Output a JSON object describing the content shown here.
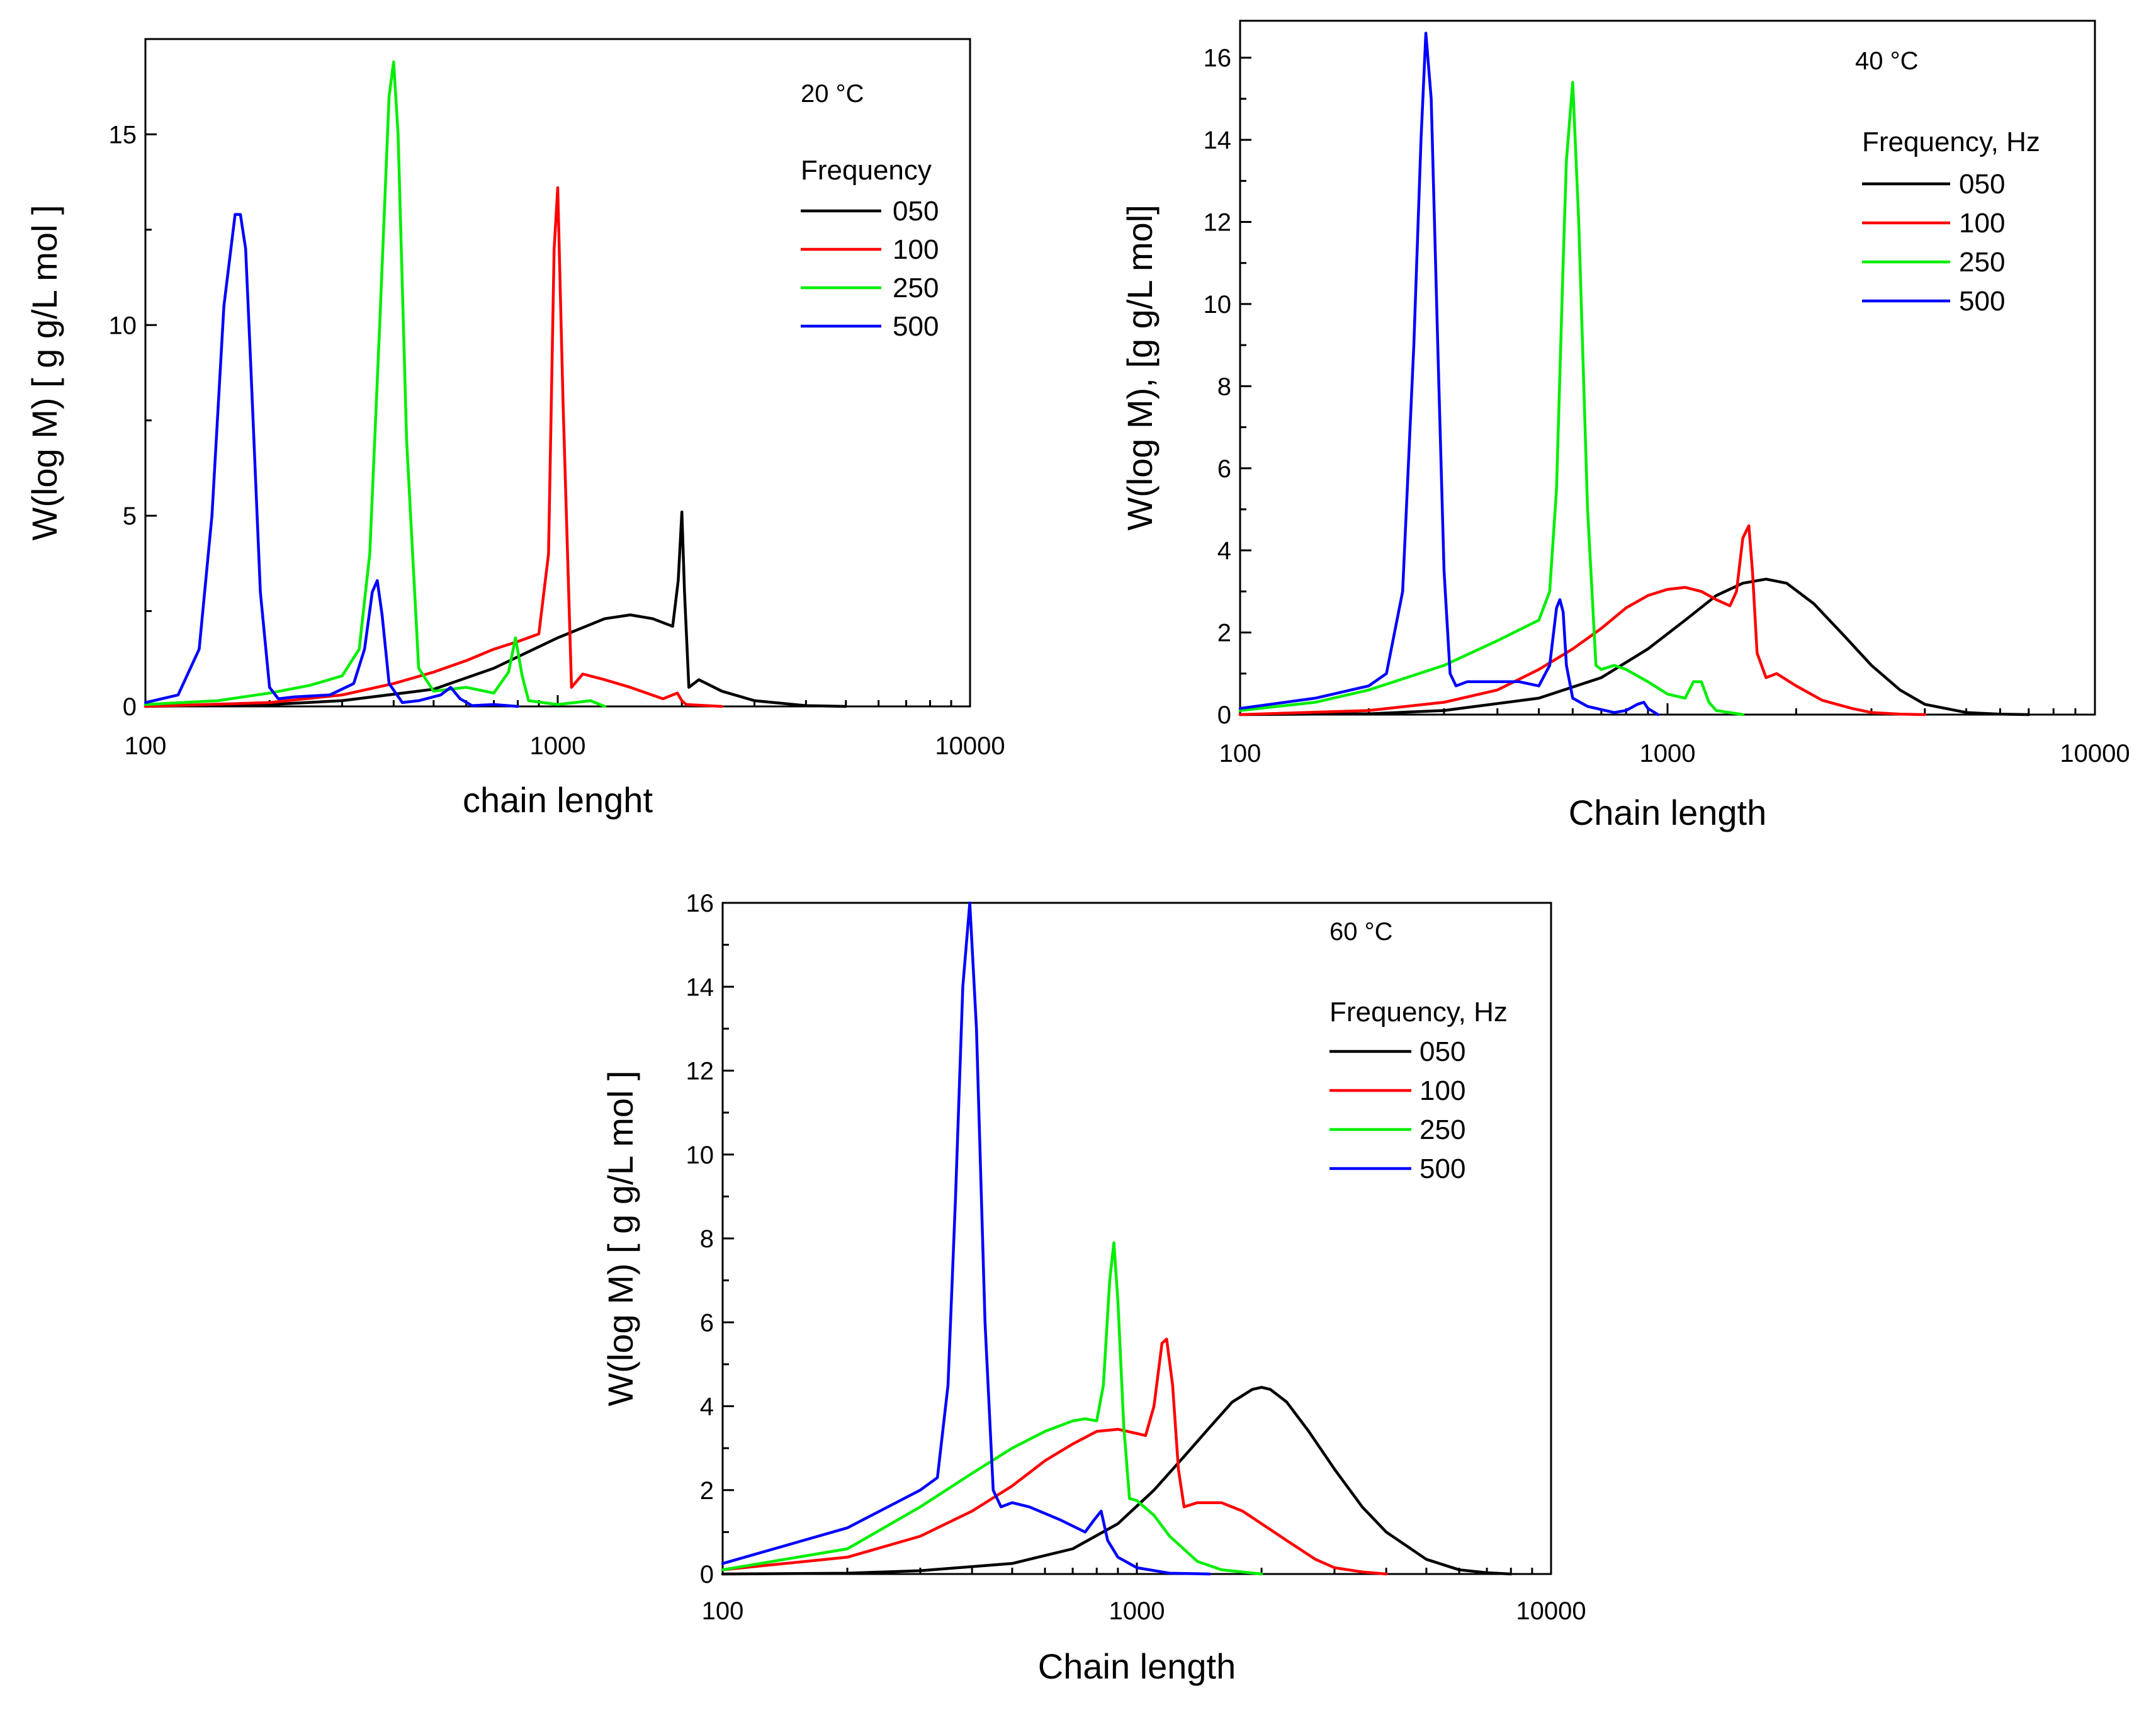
{
  "colors": {
    "050": "#000000",
    "100": "#ff0000",
    "250": "#00ee00",
    "500": "#0000ff"
  },
  "chart_data": [
    {
      "type": "line",
      "annotation": "20 °C",
      "xlabel": "chain lenght",
      "ylabel": "W(log M) [ g g/L mol ]",
      "xscale": "log",
      "xlim": [
        100,
        10000
      ],
      "ylim": [
        0,
        17.5
      ],
      "xticks": [
        100,
        1000,
        10000
      ],
      "xtick_labels": [
        "100",
        "1000",
        "10000"
      ],
      "yticks": [
        0,
        5,
        10,
        15
      ],
      "ytick_labels": [
        "0",
        "5",
        "10",
        "15"
      ],
      "grid": false,
      "legend": {
        "title": "Frequency",
        "placement": "top-right",
        "entries": [
          "050",
          "100",
          "250",
          "500"
        ]
      },
      "series": [
        {
          "name": "050",
          "x": [
            100,
            200,
            300,
            500,
            700,
            1000,
            1300,
            1500,
            1700,
            1900,
            1960,
            2000,
            2030,
            2080,
            2200,
            2500,
            3000,
            4000,
            5000
          ],
          "y": [
            0.0,
            0.05,
            0.15,
            0.45,
            1.0,
            1.8,
            2.3,
            2.4,
            2.3,
            2.1,
            3.3,
            5.1,
            3.0,
            0.5,
            0.7,
            0.4,
            0.15,
            0.02,
            0.0
          ]
        },
        {
          "name": "100",
          "x": [
            100,
            200,
            300,
            400,
            500,
            600,
            700,
            800,
            900,
            950,
            980,
            1000,
            1030,
            1080,
            1150,
            1300,
            1500,
            1800,
            1950,
            2000,
            2050,
            2500
          ],
          "y": [
            0.0,
            0.1,
            0.3,
            0.6,
            0.9,
            1.2,
            1.5,
            1.7,
            1.9,
            4.0,
            12.0,
            13.6,
            8.0,
            0.5,
            0.85,
            0.7,
            0.5,
            0.2,
            0.35,
            0.15,
            0.05,
            0.0
          ]
        },
        {
          "name": "250",
          "x": [
            100,
            150,
            200,
            250,
            300,
            330,
            350,
            370,
            390,
            400,
            410,
            430,
            460,
            500,
            550,
            600,
            700,
            760,
            790,
            820,
            850,
            1000,
            1100,
            1200,
            1300
          ],
          "y": [
            0.05,
            0.15,
            0.35,
            0.55,
            0.8,
            1.5,
            4.0,
            10.0,
            16.0,
            16.9,
            15.0,
            7.0,
            1.0,
            0.4,
            0.45,
            0.5,
            0.35,
            0.9,
            1.8,
            0.8,
            0.15,
            0.05,
            0.1,
            0.15,
            0.0
          ]
        },
        {
          "name": "500",
          "x": [
            100,
            120,
            135,
            145,
            155,
            165,
            170,
            175,
            180,
            190,
            200,
            210,
            230,
            280,
            320,
            340,
            355,
            365,
            375,
            390,
            420,
            460,
            520,
            550,
            580,
            620,
            700,
            800
          ],
          "y": [
            0.1,
            0.3,
            1.5,
            5.0,
            10.5,
            12.9,
            12.9,
            12.0,
            9.0,
            3.0,
            0.5,
            0.2,
            0.25,
            0.3,
            0.6,
            1.5,
            3.0,
            3.3,
            2.4,
            0.6,
            0.1,
            0.15,
            0.3,
            0.5,
            0.2,
            0.02,
            0.05,
            0.0
          ]
        }
      ]
    },
    {
      "type": "line",
      "annotation": "40 °C",
      "xlabel": "Chain length",
      "ylabel": "W(log M), [g g/L mol]",
      "xscale": "log",
      "xlim": [
        100,
        10000
      ],
      "ylim": [
        0,
        16.9
      ],
      "xticks": [
        100,
        1000,
        10000
      ],
      "xtick_labels": [
        "100",
        "1000",
        "10000"
      ],
      "yticks": [
        0,
        2,
        4,
        6,
        8,
        10,
        12,
        14,
        16
      ],
      "ytick_labels": [
        "0",
        "2",
        "4",
        "6",
        "8",
        "10",
        "12",
        "14",
        "16"
      ],
      "grid": false,
      "legend": {
        "title": "Frequency, Hz",
        "placement": "top-right",
        "entries": [
          "050",
          "100",
          "250",
          "500"
        ]
      },
      "series": [
        {
          "name": "050",
          "x": [
            100,
            200,
            300,
            500,
            700,
            900,
            1100,
            1300,
            1500,
            1700,
            1900,
            2200,
            2600,
            3000,
            3500,
            4000,
            5000,
            6000,
            7000
          ],
          "y": [
            0.0,
            0.02,
            0.1,
            0.4,
            0.9,
            1.6,
            2.3,
            2.9,
            3.2,
            3.3,
            3.2,
            2.7,
            1.9,
            1.2,
            0.6,
            0.25,
            0.05,
            0.01,
            0.0
          ]
        },
        {
          "name": "100",
          "x": [
            100,
            200,
            300,
            400,
            500,
            600,
            700,
            800,
            900,
            1000,
            1100,
            1200,
            1300,
            1400,
            1450,
            1500,
            1550,
            1580,
            1620,
            1700,
            1800,
            2000,
            2300,
            2700,
            3000,
            3500,
            4000
          ],
          "y": [
            0.0,
            0.1,
            0.3,
            0.6,
            1.1,
            1.6,
            2.1,
            2.6,
            2.9,
            3.05,
            3.1,
            3.0,
            2.8,
            2.65,
            3.0,
            4.3,
            4.6,
            3.5,
            1.5,
            0.9,
            1.0,
            0.7,
            0.35,
            0.15,
            0.05,
            0.01,
            0.0
          ]
        },
        {
          "name": "250",
          "x": [
            100,
            150,
            200,
            300,
            400,
            500,
            530,
            550,
            570,
            580,
            600,
            620,
            650,
            680,
            700,
            750,
            800,
            900,
            1000,
            1100,
            1150,
            1200,
            1250,
            1300,
            1500
          ],
          "y": [
            0.1,
            0.3,
            0.6,
            1.2,
            1.8,
            2.3,
            3.0,
            5.5,
            11.0,
            13.5,
            15.4,
            12.0,
            5.0,
            1.2,
            1.1,
            1.2,
            1.1,
            0.8,
            0.5,
            0.4,
            0.8,
            0.8,
            0.3,
            0.1,
            0.0
          ]
        },
        {
          "name": "500",
          "x": [
            100,
            150,
            200,
            220,
            240,
            255,
            265,
            272,
            280,
            290,
            300,
            310,
            320,
            340,
            380,
            450,
            500,
            530,
            550,
            560,
            570,
            580,
            600,
            650,
            750,
            800,
            850,
            880,
            900,
            950
          ],
          "y": [
            0.15,
            0.4,
            0.7,
            1.0,
            3.0,
            9.0,
            14.0,
            16.6,
            15.0,
            9.0,
            3.5,
            1.0,
            0.7,
            0.8,
            0.8,
            0.8,
            0.7,
            1.2,
            2.6,
            2.8,
            2.5,
            1.2,
            0.4,
            0.2,
            0.05,
            0.1,
            0.25,
            0.3,
            0.15,
            0.0
          ]
        }
      ]
    },
    {
      "type": "line",
      "annotation": "60 °C",
      "xlabel": "Chain length",
      "ylabel": "W(log M) [ g g/L mol ]",
      "xscale": "log",
      "xlim": [
        100,
        10000
      ],
      "ylim": [
        0,
        16
      ],
      "xticks": [
        100,
        1000,
        10000
      ],
      "xtick_labels": [
        "100",
        "1000",
        "10000"
      ],
      "yticks": [
        0,
        2,
        4,
        6,
        8,
        10,
        12,
        14,
        16
      ],
      "ytick_labels": [
        "0",
        "2",
        "4",
        "6",
        "8",
        "10",
        "12",
        "14",
        "16"
      ],
      "grid": false,
      "legend": {
        "title": "Frequency, Hz",
        "placement": "top-right",
        "entries": [
          "050",
          "100",
          "250",
          "500"
        ]
      },
      "series": [
        {
          "name": "050",
          "x": [
            100,
            200,
            300,
            500,
            700,
            900,
            1100,
            1300,
            1500,
            1700,
            1900,
            2000,
            2100,
            2300,
            2600,
            3000,
            3500,
            4000,
            5000,
            6000,
            7000,
            8000
          ],
          "y": [
            0.0,
            0.02,
            0.08,
            0.25,
            0.6,
            1.2,
            2.0,
            2.8,
            3.5,
            4.1,
            4.4,
            4.45,
            4.4,
            4.1,
            3.4,
            2.5,
            1.6,
            1.0,
            0.35,
            0.1,
            0.03,
            0.0
          ]
        },
        {
          "name": "100",
          "x": [
            100,
            200,
            300,
            400,
            500,
            600,
            700,
            800,
            900,
            1000,
            1050,
            1100,
            1150,
            1180,
            1220,
            1260,
            1300,
            1400,
            1600,
            1800,
            2000,
            2300,
            2700,
            3000,
            3500,
            4000
          ],
          "y": [
            0.1,
            0.4,
            0.9,
            1.5,
            2.1,
            2.7,
            3.1,
            3.4,
            3.45,
            3.35,
            3.3,
            4.0,
            5.5,
            5.6,
            4.5,
            2.5,
            1.6,
            1.7,
            1.7,
            1.5,
            1.2,
            0.8,
            0.35,
            0.15,
            0.05,
            0.0
          ]
        },
        {
          "name": "250",
          "x": [
            100,
            200,
            300,
            400,
            500,
            600,
            700,
            750,
            800,
            830,
            860,
            880,
            900,
            930,
            960,
            1000,
            1100,
            1200,
            1400,
            1600,
            2000
          ],
          "y": [
            0.1,
            0.6,
            1.6,
            2.4,
            3.0,
            3.4,
            3.65,
            3.7,
            3.65,
            4.5,
            7.0,
            7.9,
            6.5,
            3.5,
            1.8,
            1.75,
            1.4,
            0.9,
            0.3,
            0.1,
            0.0
          ]
        },
        {
          "name": "500",
          "x": [
            100,
            200,
            300,
            330,
            350,
            365,
            380,
            395,
            410,
            430,
            450,
            470,
            500,
            550,
            650,
            750,
            790,
            820,
            850,
            900,
            1000,
            1200,
            1500
          ],
          "y": [
            0.25,
            1.1,
            2.0,
            2.3,
            4.5,
            9.0,
            14.0,
            16.0,
            13.0,
            6.0,
            2.0,
            1.6,
            1.7,
            1.6,
            1.3,
            1.0,
            1.3,
            1.5,
            0.8,
            0.4,
            0.15,
            0.02,
            0.0
          ]
        }
      ]
    }
  ]
}
